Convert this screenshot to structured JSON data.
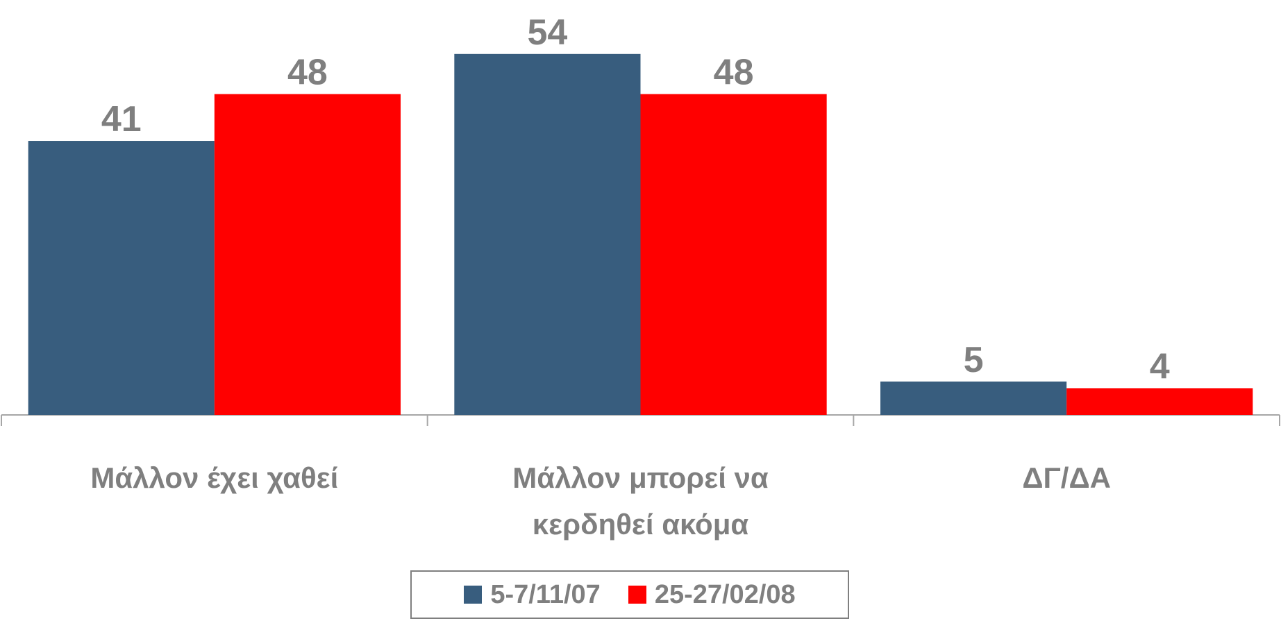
{
  "chart_data": {
    "type": "bar",
    "categories": [
      "Μάλλον έχει χαθεί",
      "Μάλλον μπορεί να κερδηθεί ακόμα",
      "ΔΓ/ΔΑ"
    ],
    "series": [
      {
        "name": "5-7/11/07",
        "color": "#385d7e",
        "values": [
          41,
          54,
          5
        ]
      },
      {
        "name": "25-27/02/08",
        "color": "#ff0000",
        "values": [
          48,
          48,
          4
        ]
      }
    ],
    "ylim": [
      0,
      60
    ]
  }
}
